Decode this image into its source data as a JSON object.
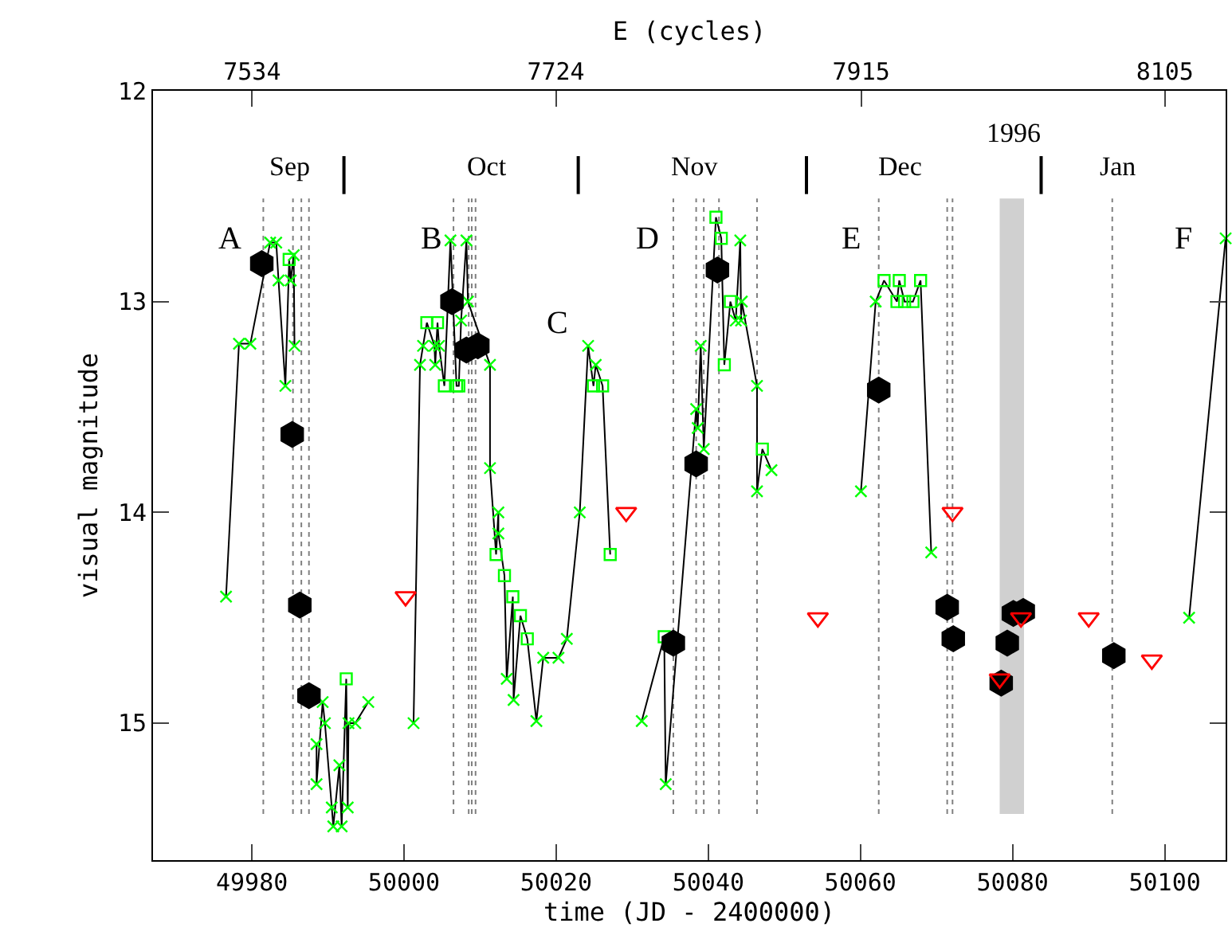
{
  "chart_data": {
    "type": "scatter",
    "xlabel": "time (JD - 2400000)",
    "ylabel": "visual magnitude",
    "x2label": "E (cycles)",
    "xlim": [
      49967,
      50108
    ],
    "xticks": [
      49980,
      50000,
      50020,
      50040,
      50060,
      50080,
      50100
    ],
    "x2lim": [
      7472,
      8143
    ],
    "x2ticks": [
      7534,
      7724,
      7915,
      8105
    ],
    "ylim": [
      15.65,
      12
    ],
    "yticks": [
      12,
      13,
      14,
      15
    ],
    "grid": false,
    "series": [
      {
        "type": "line",
        "color": "#000000",
        "marker": "none",
        "line_style": "solid",
        "x": [
          49976.6,
          49978.3,
          49979.8,
          49982.4,
          49983.2,
          49983.5,
          49984.4,
          49984.9,
          49985.1,
          49985.5,
          49985.6,
          null,
          49988.5,
          49988.5,
          49989.3,
          49989.6,
          49990.5,
          49990.7,
          49991.5,
          49991.8,
          49992.4,
          49992.6,
          49992.7,
          49993.6,
          49995.3,
          null,
          50001.25,
          50002.1,
          50002.5,
          50003.0,
          50004.0,
          50004.1,
          50004.4,
          50004.6,
          50005.3,
          50006.1,
          50006.9,
          50007.2,
          50007.5,
          50008.2,
          50008.4,
          50011.3,
          50011.3,
          50012.1,
          50012.4,
          50012.4,
          50013.2,
          50013.5,
          50014.3,
          50014.4,
          50015.3,
          50016.2,
          50017.4,
          50018.3,
          50020.3,
          50021.4,
          50023.1,
          50024.2,
          50024.9,
          50025.2,
          50026.1,
          50027.1,
          null,
          50031.25,
          50034.2,
          50034.4,
          50038.4,
          50038.6,
          50039.0,
          50039.4,
          50041.0,
          50041.7,
          50042.1,
          50042.9,
          50043.6,
          50044.2,
          50044.3,
          50044.4,
          50046.4,
          50046.4,
          50047.1,
          50048.3,
          null,
          50060.06,
          50062.0,
          50063.1,
          50064.8,
          50065.1,
          50065.8,
          50066.9,
          50067.9,
          50069.3,
          null,
          50103.2,
          50108.0
        ],
        "values": [
          14.4,
          13.2,
          13.2,
          12.72,
          12.72,
          12.9,
          13.4,
          12.8,
          12.9,
          12.78,
          13.21,
          null,
          15.1,
          15.29,
          14.9,
          15.0,
          15.4,
          15.49,
          15.2,
          15.49,
          14.79,
          15.4,
          15.0,
          15.0,
          14.9,
          null,
          15.0,
          13.3,
          13.21,
          13.1,
          13.21,
          13.3,
          13.1,
          13.21,
          13.4,
          12.71,
          13.4,
          13.4,
          13.09,
          12.71,
          13.0,
          13.3,
          13.79,
          14.2,
          14.0,
          14.1,
          14.3,
          14.79,
          14.4,
          14.89,
          14.49,
          14.6,
          14.99,
          14.69,
          14.69,
          14.6,
          14.0,
          13.21,
          13.4,
          13.3,
          13.4,
          14.2,
          null,
          14.99,
          14.59,
          15.29,
          13.51,
          13.6,
          13.21,
          13.7,
          12.6,
          12.7,
          13.3,
          13.0,
          13.09,
          12.71,
          13.09,
          13.0,
          13.4,
          13.9,
          13.7,
          13.8,
          null,
          13.9,
          13.0,
          12.9,
          13.0,
          12.9,
          13.0,
          13.0,
          12.9,
          14.19,
          null,
          14.5,
          12.7
        ]
      },
      {
        "color": "#00ff00",
        "marker": "cross",
        "x": [
          49976.6,
          49978.3,
          49979.8,
          49982.4,
          49983.2,
          49983.5,
          49984.4,
          49985.1,
          49985.5,
          49985.6,
          49988.5,
          49988.5,
          49989.3,
          49989.6,
          49990.5,
          49990.7,
          49991.5,
          49991.8,
          49992.6,
          49992.7,
          49993.6,
          49995.3,
          50001.25,
          50002.1,
          50002.5,
          50004.0,
          50004.1,
          50004.6,
          50006.1,
          50007.5,
          50008.2,
          50008.4,
          50011.3,
          50011.3,
          50012.4,
          50012.4,
          50013.5,
          50014.4,
          50017.4,
          50018.3,
          50020.3,
          50021.4,
          50023.1,
          50024.2,
          50025.2,
          50031.25,
          50034.4,
          50038.4,
          50038.6,
          50039.0,
          50039.4,
          50043.6,
          50044.2,
          50044.3,
          50044.4,
          50046.4,
          50046.4,
          50048.3,
          50060.06,
          50062.0,
          50069.3,
          50103.2,
          50108.0
        ],
        "values": [
          14.4,
          13.2,
          13.2,
          12.72,
          12.72,
          12.9,
          13.4,
          12.9,
          12.78,
          13.21,
          15.1,
          15.29,
          14.9,
          15.0,
          15.4,
          15.49,
          15.2,
          15.49,
          15.4,
          15.0,
          15.0,
          14.9,
          15.0,
          13.3,
          13.21,
          13.21,
          13.3,
          13.21,
          12.71,
          13.09,
          12.71,
          13.0,
          13.3,
          13.79,
          14.0,
          14.1,
          14.79,
          14.89,
          14.99,
          14.69,
          14.69,
          14.6,
          14.0,
          13.21,
          13.3,
          14.99,
          15.29,
          13.51,
          13.6,
          13.21,
          13.7,
          13.09,
          12.71,
          13.09,
          13.0,
          13.4,
          13.9,
          13.8,
          13.9,
          13.0,
          14.19,
          14.5,
          12.7
        ]
      },
      {
        "color": "#00ff00",
        "marker": "square",
        "x": [
          49984.9,
          49992.4,
          50003.0,
          50004.4,
          50005.3,
          50006.9,
          50007.2,
          50012.1,
          50013.2,
          50014.3,
          50015.3,
          50016.2,
          50024.9,
          50026.1,
          50027.1,
          50034.2,
          50041.0,
          50041.7,
          50042.1,
          50042.9,
          50047.1,
          50063.1,
          50064.8,
          50065.1,
          50065.8,
          50066.9,
          50067.9
        ],
        "values": [
          12.8,
          14.79,
          13.1,
          13.1,
          13.4,
          13.4,
          13.4,
          14.2,
          14.3,
          14.4,
          14.49,
          14.6,
          13.4,
          13.4,
          14.2,
          14.59,
          12.6,
          12.7,
          13.3,
          13.0,
          13.7,
          12.9,
          13.0,
          12.9,
          13.0,
          13.0,
          12.9
        ]
      },
      {
        "color": "#000000",
        "x": [
          49981.3,
          49985.3,
          49986.3,
          49987.5,
          50006.3,
          50008.2,
          50009.7,
          50035.4,
          50038.4,
          50041.2,
          50062.4,
          50071.4,
          50072.2,
          50078.5,
          50079.3,
          50080.1,
          50081.4,
          50093.3
        ],
        "values": [
          12.82,
          13.63,
          14.44,
          14.87,
          13.0,
          13.23,
          13.21,
          14.62,
          13.77,
          12.85,
          13.42,
          14.45,
          14.6,
          14.81,
          14.62,
          14.48,
          14.47,
          14.68
        ]
      },
      {
        "type": "line",
        "color": "#000000",
        "marker": "none",
        "line_style": "solid",
        "x": [
          49992.1,
          49992.1,
          null,
          50022.9,
          50022.9,
          null,
          50052.9,
          50052.9,
          null,
          50083.75,
          50083.75
        ],
        "values": [
          12.31,
          12.49,
          null,
          12.31,
          12.49,
          null,
          12.31,
          12.49,
          null,
          12.31,
          12.49
        ]
      },
      {
        "color": "#ff0000",
        "marker": "triangle",
        "x": [
          50000.2,
          50029.2,
          50054.4,
          50072.1,
          50078.3,
          50081.1,
          50090.0,
          50098.3
        ],
        "values": [
          14.4,
          14.0,
          14.5,
          14.0,
          14.79,
          14.5,
          14.5,
          14.7
        ]
      }
    ],
    "ref_lines": [
      {
        "axis": "x",
        "value": 49981.5,
        "color": "#808080",
        "line_style": "dotted"
      },
      {
        "axis": "x",
        "value": 49985.4,
        "color": "#808080",
        "line_style": "dotted"
      },
      {
        "axis": "x",
        "value": 49986.5,
        "color": "#808080",
        "line_style": "dotted"
      },
      {
        "axis": "x",
        "value": 49987.5,
        "color": "#808080",
        "line_style": "dotted"
      },
      {
        "axis": "x",
        "value": 50006.5,
        "color": "#808080",
        "line_style": "dotted"
      },
      {
        "axis": "x",
        "value": 50008.5,
        "color": "#808080",
        "line_style": "dotted"
      },
      {
        "axis": "x",
        "value": 50008.9,
        "color": "#808080",
        "line_style": "dotted"
      },
      {
        "axis": "x",
        "value": 50009.4,
        "color": "#808080",
        "line_style": "dotted"
      },
      {
        "axis": "x",
        "value": 50035.4,
        "color": "#808080",
        "line_style": "dotted"
      },
      {
        "axis": "x",
        "value": 50038.4,
        "color": "#808080",
        "line_style": "dotted"
      },
      {
        "axis": "x",
        "value": 50039.4,
        "color": "#808080",
        "line_style": "dotted"
      },
      {
        "axis": "x",
        "value": 50041.4,
        "color": "#808080",
        "line_style": "dotted"
      },
      {
        "axis": "x",
        "value": 50046.4,
        "color": "#808080",
        "line_style": "dotted"
      },
      {
        "axis": "x",
        "value": 50062.4,
        "color": "#808080",
        "line_style": "dotted"
      },
      {
        "axis": "x",
        "value": 50071.4,
        "color": "#808080",
        "line_style": "dotted"
      },
      {
        "axis": "x",
        "value": 50072.1,
        "color": "#808080",
        "line_style": "dotted"
      },
      {
        "axis": "x",
        "value": 50093.1,
        "color": "#808080",
        "line_style": "dotted"
      }
    ],
    "bands": [
      {
        "axis": "x",
        "from": 50078.3,
        "to": 50081.5,
        "color": "#b0b0b0"
      }
    ],
    "annotations": [
      "Sep",
      "Oct",
      "Nov",
      "Dec",
      "Jan",
      "1996",
      "A",
      "B",
      "C",
      "D",
      "E",
      "F"
    ]
  }
}
